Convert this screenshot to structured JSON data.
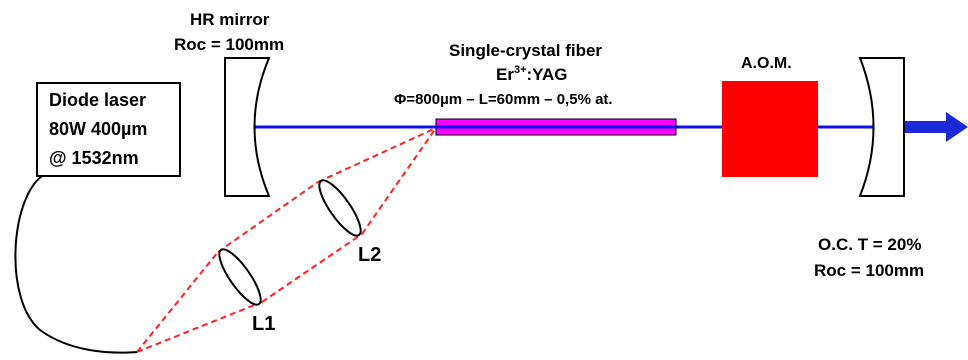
{
  "diode_laser": {
    "line1": "Diode laser",
    "line2": "80W 400µm",
    "line3": "@ 1532nm"
  },
  "hr_mirror": {
    "title": "HR mirror",
    "roc": "Roc = 100mm"
  },
  "fiber": {
    "title": "Single-crystal fiber",
    "material_base": "Er",
    "material_sup": "3+",
    "material_rest": ":YAG",
    "specs": "Φ=800µm – L=60mm – 0,5% at."
  },
  "aom": {
    "label": "A.O.M."
  },
  "output_coupler": {
    "transmission": "O.C. T = 20%",
    "roc": "Roc = 100mm"
  },
  "lenses": {
    "l1": "L1",
    "l2": "L2"
  },
  "colors": {
    "beam": "#1010ee",
    "pump": "#ff2020",
    "fiber": "#ff00ff",
    "aom": "#ff0000"
  }
}
